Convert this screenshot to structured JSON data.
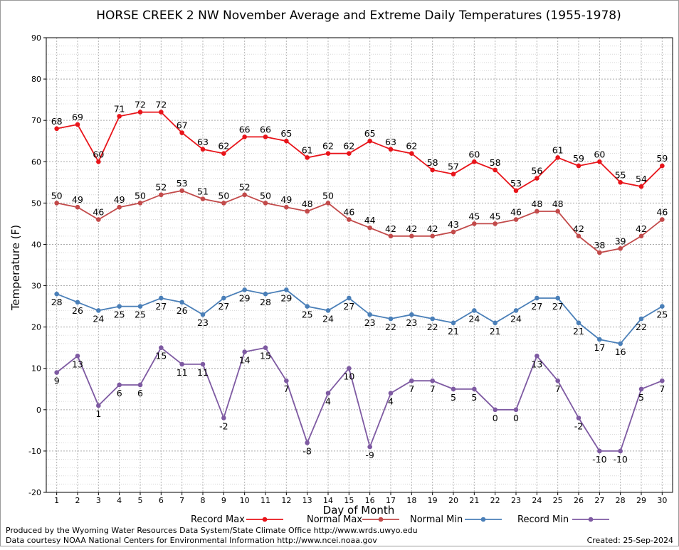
{
  "chart_data": {
    "type": "line",
    "title": "HORSE CREEK 2 NW November Average and Extreme Daily Temperatures (1955-1978)",
    "xlabel": "Day of Month",
    "ylabel": "Temperature (F)",
    "ylim": [
      -20,
      90
    ],
    "xlim": [
      0.5,
      30.5
    ],
    "x": [
      1,
      2,
      3,
      4,
      5,
      6,
      7,
      8,
      9,
      10,
      11,
      12,
      13,
      14,
      15,
      16,
      17,
      18,
      19,
      20,
      21,
      22,
      23,
      24,
      25,
      26,
      27,
      28,
      29,
      30
    ],
    "yticks": [
      -20,
      -10,
      0,
      10,
      20,
      30,
      40,
      50,
      60,
      70,
      80,
      90
    ],
    "grid": true,
    "legend_position": "bottom",
    "series": [
      {
        "name": "Record Max",
        "color": "#e8141a",
        "values": [
          68,
          69,
          60,
          71,
          72,
          72,
          67,
          63,
          62,
          66,
          66,
          65,
          61,
          62,
          62,
          65,
          63,
          62,
          58,
          57,
          60,
          58,
          53,
          56,
          61,
          59,
          60,
          55,
          54,
          59
        ]
      },
      {
        "name": "Normal Max",
        "color": "#c24a4a",
        "values": [
          50,
          49,
          46,
          49,
          50,
          52,
          53,
          51,
          50,
          52,
          50,
          49,
          48,
          50,
          46,
          44,
          42,
          42,
          42,
          43,
          45,
          45,
          46,
          48,
          48,
          42,
          38,
          39,
          42,
          46
        ]
      },
      {
        "name": "Normal Min",
        "color": "#4a7fb8",
        "values": [
          28,
          26,
          24,
          25,
          25,
          27,
          26,
          23,
          27,
          29,
          28,
          29,
          25,
          24,
          27,
          23,
          22,
          23,
          22,
          21,
          24,
          21,
          24,
          27,
          27,
          21,
          17,
          16,
          22,
          25
        ]
      },
      {
        "name": "Record Min",
        "color": "#7e5aa2",
        "values": [
          9,
          13,
          1,
          6,
          6,
          15,
          11,
          11,
          -2,
          14,
          15,
          7,
          -8,
          4,
          10,
          -9,
          4,
          7,
          7,
          5,
          5,
          0,
          0,
          13,
          7,
          -2,
          -10,
          -10,
          5,
          7
        ]
      }
    ]
  },
  "footer": {
    "produced_by": "Produced by the Wyoming Water Resources Data System/State Climate Office http://www.wrds.uwyo.edu",
    "data_courtesy": "Data courtesy NOAA National Centers for Environmental Information http://www.ncei.noaa.gov",
    "created": "Created:  25-Sep-2024"
  }
}
